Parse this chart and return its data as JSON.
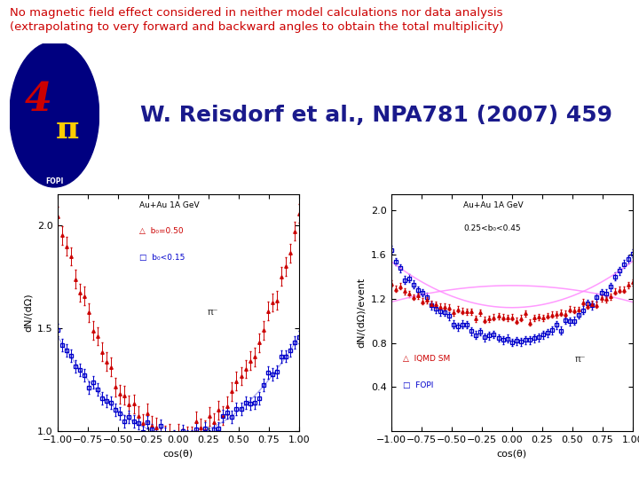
{
  "title_line1": "No magnetic field effect considered in neither model calculations nor data analysis",
  "title_line2": "(extrapolating to very forward and backward angles to obtain the total multiplicity)",
  "title_color": "#cc0000",
  "title_fontsize": 9.5,
  "citation": "W. Reisdorf et al., NPA781 (2007) 459",
  "citation_fontsize": 18,
  "citation_color": "#1a1a8c",
  "bg_color": "#ffffff",
  "plot1": {
    "title": "Au+Au 1A GeV",
    "legend1_label": "△  b₀=0.50",
    "legend1_color": "#cc0000",
    "legend2_label": "□  b₀<0.15",
    "legend2_color": "#0000cc",
    "pi_label": "π⁻",
    "ylabel": "dN/(dΩ)",
    "xlabel": "cos(θ)",
    "ylim": [
      1.0,
      2.15
    ],
    "xlim": [
      -1.0,
      1.0
    ],
    "yticks": [
      1.0,
      1.5,
      2.0
    ],
    "curve1_color": "#cc0000",
    "curve2_color": "#0000cc",
    "fit_color": "#aaaaee"
  },
  "plot2": {
    "title": "Au+Au 1A GeV",
    "subtitle": "0.25<b₀<0.45",
    "legend1_label": "△  IQMD SM",
    "legend1_color": "#cc0000",
    "legend2_label": "□  FOPI",
    "legend2_color": "#0000cc",
    "pi_label": "π⁻",
    "ylabel": "dN/(dΩ)/event",
    "xlabel": "cos(θ)",
    "ylim": [
      0.0,
      2.15
    ],
    "xlim": [
      -1.0,
      1.0
    ],
    "yticks": [
      0.4,
      0.8,
      1.2,
      1.6,
      2.0
    ],
    "curve1_color": "#cc0000",
    "curve2_color": "#0000cc",
    "fit_color": "#ff88ff"
  }
}
